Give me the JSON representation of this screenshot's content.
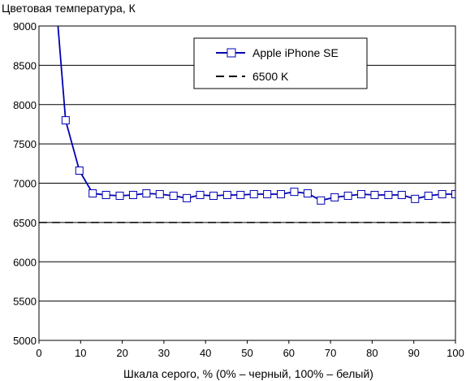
{
  "chart_data": {
    "type": "line",
    "title": "",
    "ylabel": "Цветовая температура, К",
    "xlabel": "Шкала серого, % (0% – черный, 100% – белый)",
    "xlim": [
      0,
      100
    ],
    "ylim": [
      5000,
      9000
    ],
    "x_ticks": [
      "0",
      "10",
      "20",
      "30",
      "40",
      "50",
      "60",
      "70",
      "80",
      "90",
      "100"
    ],
    "y_ticks": [
      "9000",
      "8500",
      "8000",
      "7500",
      "7000",
      "6500",
      "6000",
      "5500",
      "5000"
    ],
    "grid": "horizontal",
    "legend_position": "top-right",
    "colors": {
      "series": "#0000b3",
      "reference": "#000000",
      "grid": "#000000"
    },
    "series": [
      {
        "name": "Apple iPhone SE",
        "x": [
          3.2,
          6.4,
          9.7,
          12.9,
          16.1,
          19.4,
          22.6,
          25.8,
          29.0,
          32.3,
          35.5,
          38.7,
          41.9,
          45.2,
          48.4,
          51.6,
          54.8,
          58.1,
          61.3,
          64.5,
          67.7,
          71.0,
          74.2,
          77.4,
          80.6,
          83.9,
          87.1,
          90.3,
          93.5,
          96.8,
          100.0
        ],
        "y": [
          9900,
          7800,
          7160,
          6870,
          6850,
          6840,
          6850,
          6870,
          6860,
          6840,
          6810,
          6850,
          6840,
          6850,
          6850,
          6860,
          6860,
          6860,
          6890,
          6870,
          6780,
          6820,
          6840,
          6860,
          6850,
          6850,
          6850,
          6800,
          6840,
          6860,
          6860
        ]
      },
      {
        "name": "6500 K",
        "x": [
          0,
          100
        ],
        "y": [
          6500,
          6500
        ]
      }
    ]
  }
}
